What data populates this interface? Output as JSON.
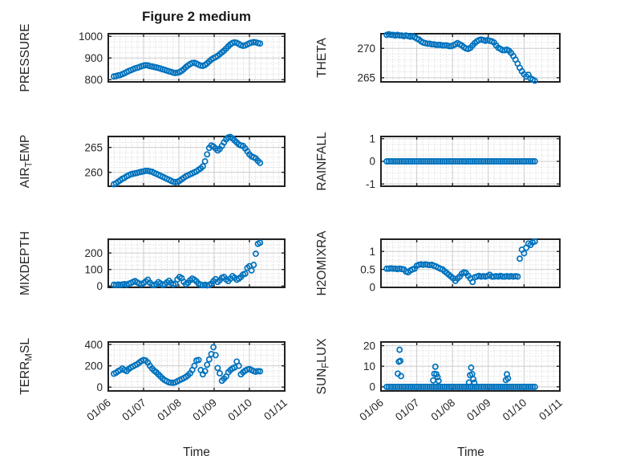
{
  "figure": {
    "title": "Figure 2 medium",
    "x_axis_label": "Time",
    "xlim": [
      6,
      11
    ],
    "x_tick_values": [
      6,
      7,
      8,
      9,
      10,
      11
    ],
    "x_tick_labels": [
      "01/06",
      "01/07",
      "01/08",
      "01/09",
      "01/10",
      "01/11"
    ],
    "colors": {
      "marker": "#0072BD",
      "box": "#212121",
      "grid_major": "#cccccc",
      "grid_minor": "#d9d9d9",
      "text": "#262626",
      "background": "#ffffff"
    },
    "sample_times": [
      6.16,
      6.22,
      6.28,
      6.34,
      6.4,
      6.46,
      6.52,
      6.58,
      6.64,
      6.7,
      6.76,
      6.82,
      6.88,
      6.94,
      7.0,
      7.06,
      7.12,
      7.18,
      7.24,
      7.3,
      7.36,
      7.42,
      7.48,
      7.54,
      7.6,
      7.66,
      7.72,
      7.78,
      7.84,
      7.9,
      7.96,
      8.02,
      8.08,
      8.14,
      8.2,
      8.26,
      8.32,
      8.38,
      8.44,
      8.5,
      8.56,
      8.62,
      8.68,
      8.74,
      8.8,
      8.86,
      8.92,
      8.98,
      9.04,
      9.1,
      9.16,
      9.22,
      9.28,
      9.34,
      9.4,
      9.46,
      9.52,
      9.58,
      9.64,
      9.7,
      9.76,
      9.82,
      9.88,
      9.94,
      10.0,
      10.06,
      10.12,
      10.18,
      10.24,
      10.3
    ]
  },
  "chart_data": [
    {
      "id": "pressure",
      "type": "scatter",
      "marker": "circle-open",
      "ylabel": "PRESSURE",
      "ylabel_parts": [
        "PRESSURE"
      ],
      "yticks": [
        800,
        900,
        1000
      ],
      "ytick_labels": [
        "800",
        "900",
        "1000"
      ],
      "ylim": [
        790,
        1012
      ],
      "yminor": 25,
      "grid": true,
      "y": [
        815,
        817,
        820,
        822,
        826,
        830,
        835,
        840,
        844,
        848,
        852,
        855,
        858,
        862,
        865,
        867,
        866,
        863,
        861,
        859,
        857,
        854,
        851,
        848,
        845,
        842,
        839,
        836,
        833,
        831,
        832,
        835,
        841,
        849,
        858,
        866,
        872,
        877,
        878,
        874,
        869,
        865,
        864,
        868,
        875,
        884,
        893,
        899,
        904,
        910,
        918,
        926,
        934,
        944,
        954,
        963,
        969,
        972,
        970,
        965,
        959,
        956,
        958,
        963,
        968,
        971,
        973,
        972,
        969,
        967
      ]
    },
    {
      "id": "theta",
      "type": "scatter",
      "marker": "circle-open",
      "ylabel": "THETA",
      "ylabel_parts": [
        "THETA"
      ],
      "yticks": [
        265,
        270
      ],
      "ytick_labels": [
        "265",
        "270"
      ],
      "ylim": [
        264.3,
        272.5
      ],
      "yminor": 1,
      "grid": true,
      "y": [
        272.3,
        272.4,
        272.3,
        272.3,
        272.2,
        272.3,
        272.2,
        272.2,
        272.1,
        272.2,
        272.1,
        272.0,
        272.1,
        271.9,
        271.7,
        271.5,
        271.2,
        271.0,
        270.9,
        270.8,
        270.8,
        270.7,
        270.7,
        270.6,
        270.6,
        270.6,
        270.5,
        270.5,
        270.5,
        270.4,
        270.4,
        270.5,
        270.7,
        270.9,
        270.7,
        270.5,
        270.2,
        270.0,
        269.9,
        270.1,
        270.5,
        270.9,
        271.2,
        271.4,
        271.5,
        271.4,
        271.3,
        271.4,
        271.3,
        271.2,
        271.0,
        270.5,
        270.1,
        269.9,
        269.7,
        269.7,
        269.8,
        269.6,
        269.2,
        268.7,
        268.1,
        267.4,
        266.7,
        266.1,
        265.6,
        265.2,
        265.5,
        264.9,
        264.7,
        264.5
      ]
    },
    {
      "id": "air_temp",
      "type": "scatter",
      "marker": "circle-open",
      "ylabel": "AIR_TEMP",
      "ylabel_parts": [
        "AIR",
        "_T",
        "EMP"
      ],
      "yticks": [
        260,
        265
      ],
      "ytick_labels": [
        "260",
        "265"
      ],
      "ylim": [
        257.2,
        267.2
      ],
      "yminor": 1,
      "grid": true,
      "y": [
        257.6,
        257.8,
        258.1,
        258.4,
        258.7,
        258.9,
        259.2,
        259.4,
        259.6,
        259.7,
        259.8,
        259.9,
        260.0,
        260.1,
        260.2,
        260.3,
        260.3,
        260.2,
        260.1,
        259.9,
        259.7,
        259.5,
        259.3,
        259.1,
        258.9,
        258.7,
        258.5,
        258.3,
        258.1,
        258.0,
        258.1,
        258.3,
        258.6,
        258.9,
        259.2,
        259.4,
        259.6,
        259.8,
        260.0,
        260.2,
        260.5,
        260.8,
        261.2,
        262.2,
        263.6,
        264.9,
        265.4,
        265.2,
        264.8,
        264.4,
        264.7,
        265.3,
        266.0,
        266.6,
        267.0,
        267.1,
        266.8,
        266.4,
        266.0,
        265.6,
        265.4,
        265.3,
        264.8,
        264.2,
        263.6,
        263.2,
        263.0,
        262.8,
        262.3,
        261.9
      ]
    },
    {
      "id": "rainfall",
      "type": "scatter",
      "marker": "circle-open",
      "ylabel": "RAINFALL",
      "ylabel_parts": [
        "RAINFALL"
      ],
      "yticks": [
        -1,
        0,
        1
      ],
      "ytick_labels": [
        "-1",
        "0",
        "1"
      ],
      "ylim": [
        -1.1,
        1.1
      ],
      "yminor": 0.25,
      "grid": true,
      "y": [
        0,
        0,
        0,
        0,
        0,
        0,
        0,
        0,
        0,
        0,
        0,
        0,
        0,
        0,
        0,
        0,
        0,
        0,
        0,
        0,
        0,
        0,
        0,
        0,
        0,
        0,
        0,
        0,
        0,
        0,
        0,
        0,
        0,
        0,
        0,
        0,
        0,
        0,
        0,
        0,
        0,
        0,
        0,
        0,
        0,
        0,
        0,
        0,
        0,
        0,
        0,
        0,
        0,
        0,
        0,
        0,
        0,
        0,
        0,
        0,
        0,
        0,
        0,
        0,
        0,
        0,
        0,
        0,
        0,
        0
      ]
    },
    {
      "id": "mixdepth",
      "type": "scatter",
      "marker": "circle-open",
      "ylabel": "MIXDEPTH",
      "ylabel_parts": [
        "MIXDEPTH"
      ],
      "yticks": [
        0,
        100,
        200
      ],
      "ytick_labels": [
        "0",
        "100",
        "200"
      ],
      "ylim": [
        -8,
        283
      ],
      "yminor": 25,
      "grid": true,
      "y": [
        8,
        6,
        9,
        7,
        10,
        12,
        9,
        14,
        18,
        25,
        30,
        22,
        15,
        12,
        18,
        28,
        38,
        20,
        8,
        5,
        12,
        24,
        16,
        7,
        10,
        22,
        32,
        18,
        10,
        14,
        40,
        55,
        48,
        25,
        12,
        20,
        35,
        45,
        38,
        28,
        15,
        8,
        5,
        8,
        4,
        6,
        15,
        30,
        42,
        25,
        35,
        50,
        55,
        40,
        30,
        45,
        60,
        50,
        38,
        45,
        55,
        70,
        75,
        110,
        120,
        95,
        128,
        195,
        255,
        262
      ]
    },
    {
      "id": "h2omixra",
      "type": "scatter",
      "marker": "circle-open",
      "ylabel": "H2OMIXRA",
      "ylabel_parts": [
        "H2OMIXRA"
      ],
      "yticks": [
        0,
        0.5,
        1
      ],
      "ytick_labels": [
        "0",
        "0.5",
        "1"
      ],
      "ylim": [
        0,
        1.34
      ],
      "yminor": 0.125,
      "grid": true,
      "y": [
        0.52,
        0.52,
        0.53,
        0.52,
        0.52,
        0.51,
        0.52,
        0.51,
        0.5,
        0.44,
        0.42,
        0.47,
        0.5,
        0.52,
        0.6,
        0.63,
        0.64,
        0.63,
        0.64,
        0.63,
        0.62,
        0.63,
        0.6,
        0.58,
        0.55,
        0.52,
        0.5,
        0.45,
        0.4,
        0.35,
        0.3,
        0.25,
        0.18,
        0.25,
        0.3,
        0.38,
        0.42,
        0.4,
        0.32,
        0.25,
        0.15,
        0.28,
        0.3,
        0.32,
        0.3,
        0.31,
        0.3,
        0.32,
        0.35,
        0.3,
        0.3,
        0.31,
        0.3,
        0.32,
        0.3,
        0.3,
        0.31,
        0.3,
        0.31,
        0.3,
        0.31,
        0.3,
        0.8,
        1.05,
        0.95,
        1.1,
        1.22,
        1.18,
        1.25,
        1.28
      ]
    },
    {
      "id": "terr_msl",
      "type": "scatter",
      "marker": "circle-open",
      "ylabel": "TERR_MSL",
      "ylabel_parts": [
        "TERR",
        "_M",
        "SL"
      ],
      "yticks": [
        0,
        200,
        400
      ],
      "ytick_labels": [
        "0",
        "200",
        "400"
      ],
      "ylim": [
        -36,
        424
      ],
      "yminor": 50,
      "grid": true,
      "y": [
        125,
        135,
        150,
        160,
        175,
        160,
        150,
        170,
        185,
        195,
        205,
        215,
        230,
        245,
        255,
        250,
        230,
        200,
        175,
        155,
        140,
        120,
        100,
        80,
        65,
        55,
        45,
        42,
        40,
        45,
        55,
        65,
        75,
        85,
        95,
        110,
        130,
        160,
        200,
        250,
        255,
        160,
        120,
        150,
        210,
        260,
        310,
        375,
        300,
        180,
        130,
        60,
        80,
        100,
        140,
        160,
        175,
        185,
        240,
        200,
        120,
        140,
        155,
        165,
        170,
        160,
        150,
        145,
        150,
        148
      ]
    },
    {
      "id": "sun_flux",
      "type": "scatter",
      "marker": "circle-open",
      "ylabel": "SUN_FLUX",
      "ylabel_parts": [
        "SUN",
        "_F",
        "LUX"
      ],
      "yticks": [
        0,
        10,
        20
      ],
      "ytick_labels": [
        "0",
        "10",
        "20"
      ],
      "ylim": [
        -2,
        21.8
      ],
      "yminor": 2.5,
      "grid": true,
      "y": [
        0,
        0,
        0,
        0,
        0,
        0,
        0,
        0,
        0,
        0,
        0,
        0,
        0,
        0,
        0,
        0,
        0,
        0,
        0,
        0,
        0,
        0,
        0,
        0,
        0,
        0,
        0,
        0,
        0,
        0,
        0,
        0,
        0,
        0,
        0,
        0,
        0,
        0,
        0,
        0,
        0,
        0,
        0,
        0,
        0,
        0,
        0,
        0,
        0,
        0,
        0,
        0,
        0,
        0,
        0,
        0,
        0,
        0,
        0,
        0,
        0,
        0,
        0,
        0,
        0,
        0,
        0,
        0,
        0,
        0
      ],
      "extra_x": [
        6.47,
        6.5,
        6.52,
        6.54,
        6.56,
        7.46,
        7.49,
        7.52,
        7.55,
        7.58,
        7.61,
        8.46,
        8.49,
        8.52,
        8.55,
        8.58,
        8.61,
        9.49,
        9.52,
        9.55
      ],
      "extra_y": [
        6.4,
        12.2,
        18.0,
        12.6,
        5.2,
        3.1,
        6.3,
        9.8,
        6.1,
        4.7,
        2.9,
        2.1,
        5.7,
        9.3,
        6.2,
        3.7,
        2.0,
        3.3,
        6.1,
        4.1
      ]
    }
  ]
}
